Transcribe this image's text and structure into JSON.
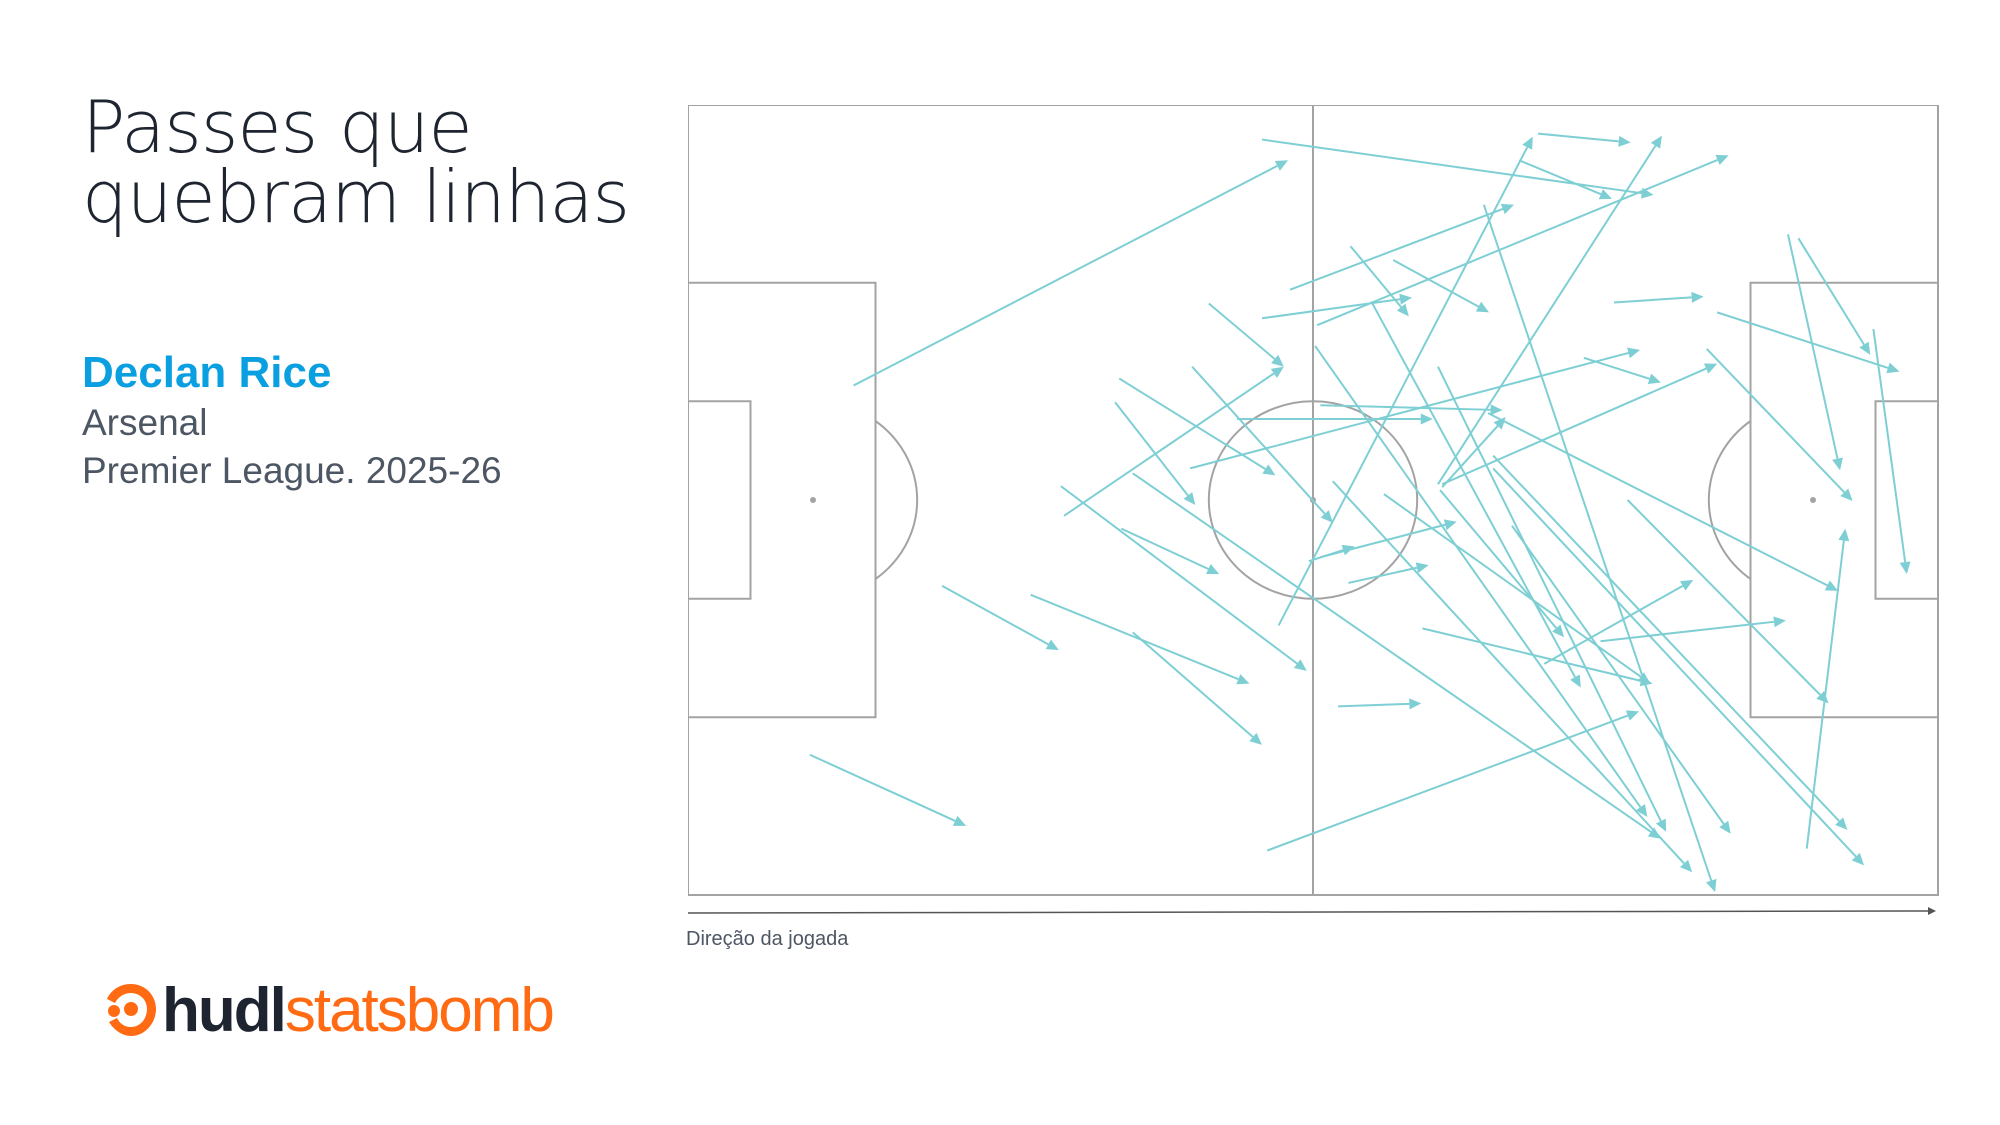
{
  "header": {
    "title_line1": "Passes que",
    "title_line2": "quebram linhas",
    "player": "Declan Rice",
    "team": "Arsenal",
    "competition": "Premier League. 2025-26"
  },
  "footer": {
    "direction_label": "Direção da jogada",
    "logo_text_1": "hudl",
    "logo_text_2": "statsbomb"
  },
  "colors": {
    "pass": "#7ecfd4",
    "pitch_lines": "#a3a3a3",
    "brand": "#ff6a13",
    "player": "#0a9fe0"
  },
  "chart_data": {
    "type": "pass-map",
    "pitch": {
      "length": 120,
      "width": 80,
      "direction": "left-to-right"
    },
    "passes": [
      [
        15.9,
        28.4,
        57.6,
        5.6
      ],
      [
        55.1,
        3.5,
        92.7,
        9.1
      ],
      [
        81.6,
        2.9,
        90.5,
        3.8
      ],
      [
        79.8,
        5.6,
        88.7,
        9.5
      ],
      [
        56.7,
        52.7,
        81.1,
        3.2
      ],
      [
        72.0,
        38.4,
        93.5,
        3.1
      ],
      [
        57.8,
        18.7,
        79.3,
        10.1
      ],
      [
        60.4,
        22.3,
        99.9,
        5.1
      ],
      [
        63.6,
        14.3,
        69.2,
        21.4
      ],
      [
        67.7,
        15.7,
        76.9,
        21.0
      ],
      [
        55.1,
        21.6,
        69.5,
        19.5
      ],
      [
        88.9,
        20.0,
        97.5,
        19.4
      ],
      [
        98.8,
        21.0,
        116.3,
        27.0
      ],
      [
        105.6,
        13.1,
        110.6,
        37.0
      ],
      [
        106.6,
        13.5,
        113.5,
        25.3
      ],
      [
        113.8,
        22.7,
        117.0,
        47.5
      ],
      [
        86.0,
        25.6,
        93.4,
        28.1
      ],
      [
        48.2,
        36.8,
        91.4,
        24.8
      ],
      [
        72.4,
        38.4,
        98.8,
        26.2
      ],
      [
        97.8,
        24.7,
        111.8,
        40.1
      ],
      [
        50.0,
        20.1,
        57.2,
        26.5
      ],
      [
        36.1,
        41.6,
        57.2,
        26.5
      ],
      [
        41.4,
        27.7,
        56.4,
        37.5
      ],
      [
        48.4,
        26.5,
        61.9,
        42.3
      ],
      [
        41.0,
        30.1,
        48.7,
        40.5
      ],
      [
        52.7,
        31.8,
        71.5,
        31.8
      ],
      [
        60.7,
        30.4,
        78.2,
        30.9
      ],
      [
        76.8,
        31.2,
        110.4,
        49.2
      ],
      [
        72.0,
        26.5,
        93.9,
        73.6
      ],
      [
        35.8,
        38.6,
        59.4,
        57.3
      ],
      [
        42.7,
        37.3,
        93.4,
        74.3
      ],
      [
        41.6,
        42.9,
        51.0,
        47.5
      ],
      [
        24.4,
        48.7,
        35.6,
        55.2
      ],
      [
        32.9,
        49.6,
        53.9,
        58.6
      ],
      [
        42.7,
        53.4,
        55.1,
        64.8
      ],
      [
        11.7,
        65.8,
        26.7,
        73.0
      ],
      [
        59.6,
        46.2,
        64.0,
        44.7
      ],
      [
        63.4,
        48.4,
        71.1,
        46.6
      ],
      [
        60.2,
        24.4,
        92.1,
        72.1
      ],
      [
        65.6,
        19.9,
        85.7,
        59.0
      ],
      [
        66.8,
        39.4,
        92.4,
        58.6
      ],
      [
        72.2,
        39.0,
        84.1,
        53.9
      ],
      [
        76.4,
        10.1,
        98.6,
        79.7
      ],
      [
        79.1,
        42.6,
        100.1,
        73.8
      ],
      [
        77.3,
        35.5,
        111.3,
        73.4
      ],
      [
        77.3,
        36.8,
        112.9,
        77.0
      ],
      [
        90.2,
        40.0,
        109.5,
        60.6
      ],
      [
        61.9,
        38.1,
        96.4,
        77.7
      ],
      [
        70.5,
        53.0,
        92.6,
        58.6
      ],
      [
        87.6,
        54.3,
        105.4,
        52.2
      ],
      [
        82.2,
        56.6,
        96.5,
        48.1
      ],
      [
        62.4,
        60.9,
        70.4,
        60.6
      ],
      [
        55.6,
        75.5,
        91.3,
        61.4
      ],
      [
        107.4,
        75.3,
        111.1,
        42.9
      ],
      [
        72.4,
        38.7,
        78.5,
        31.6
      ],
      [
        60.7,
        45.8,
        73.8,
        42.2
      ]
    ]
  }
}
